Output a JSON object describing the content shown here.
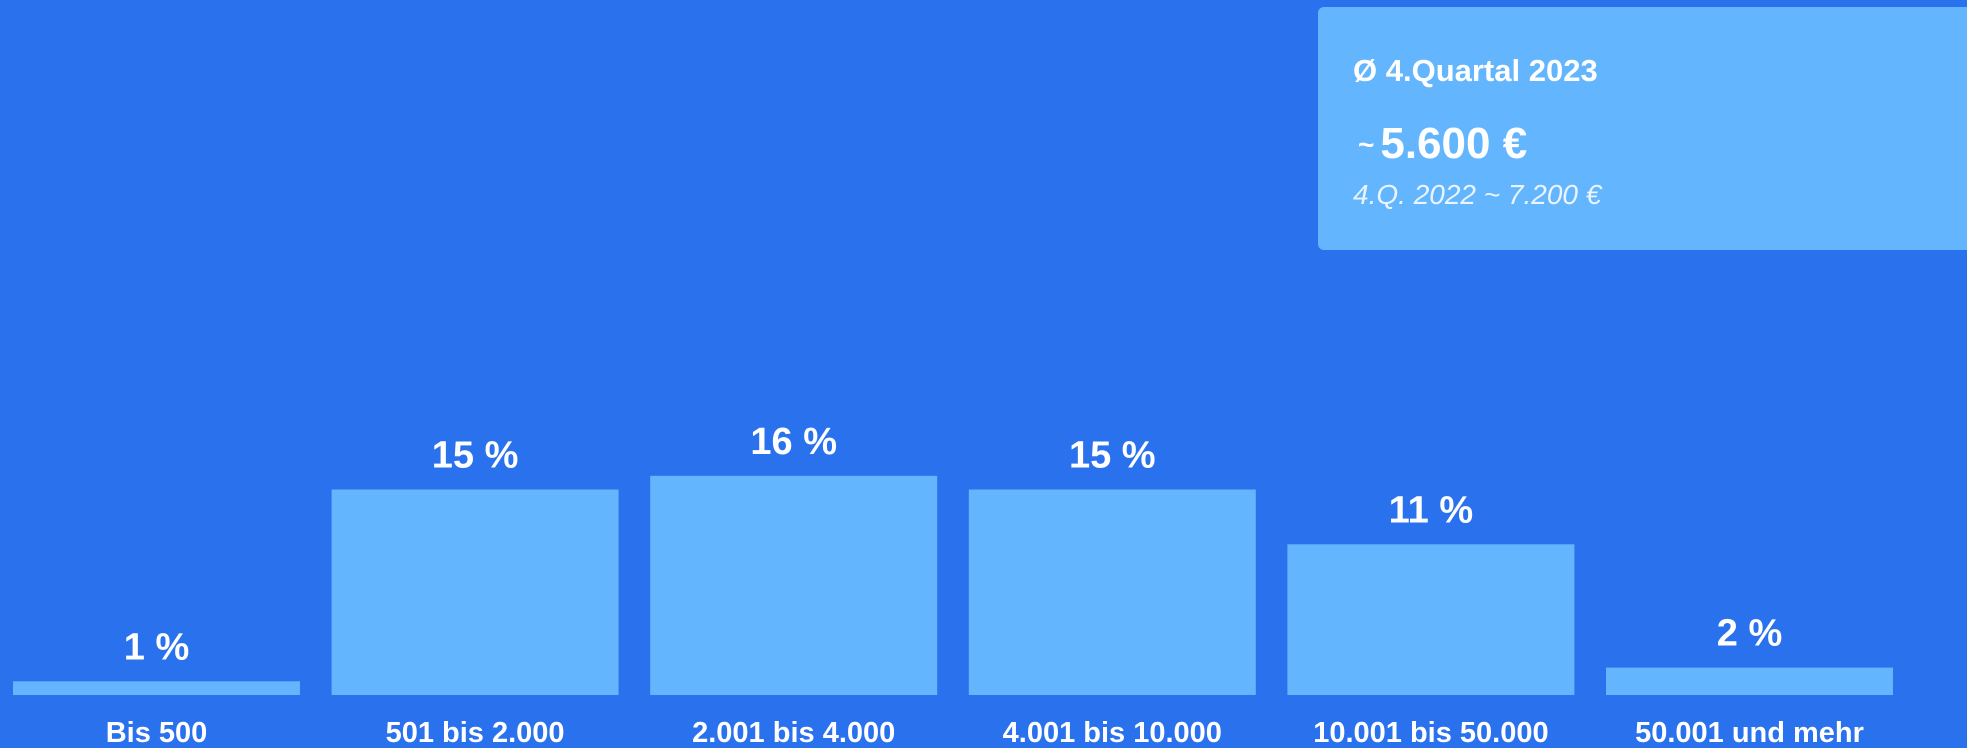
{
  "summary": {
    "title": "Ø 4.Quartal 2023",
    "approx_symbol": "~",
    "value": "5.600 €",
    "previous": "4.Q. 2022 ~ 7.200 €"
  },
  "colors": {
    "background": "#2a71ee",
    "bar": "#63b5fe",
    "text": "#ffffff"
  },
  "chart_data": {
    "type": "bar",
    "categories": [
      "Bis 500",
      "501 bis 2.000",
      "2.001 bis 4.000",
      "4.001 bis 10.000",
      "10.001 bis 50.000",
      "50.001 und mehr"
    ],
    "values": [
      1,
      15,
      16,
      15,
      11,
      2
    ],
    "value_labels": [
      "1 %",
      "15 %",
      "16 %",
      "15 %",
      "11 %",
      "2 %"
    ],
    "title": "",
    "xlabel": "",
    "ylabel": "",
    "ylim": [
      0,
      16
    ],
    "grid": false,
    "legend": "none"
  }
}
